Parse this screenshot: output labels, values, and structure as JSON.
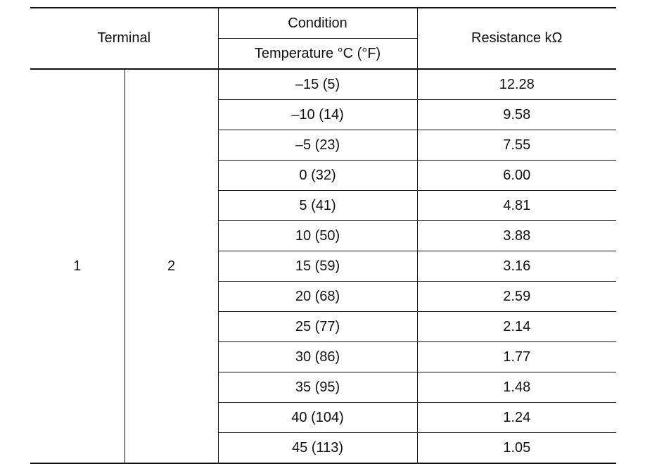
{
  "table": {
    "header": {
      "terminal": "Terminal",
      "condition": "Condition",
      "temperature": "Temperature °C (°F)",
      "resistance": "Resistance kΩ"
    },
    "terminal_1": "1",
    "terminal_2": "2",
    "rows": [
      {
        "temp": "–15 (5)",
        "resistance": "12.28"
      },
      {
        "temp": "–10 (14)",
        "resistance": "9.58"
      },
      {
        "temp": "–5 (23)",
        "resistance": "7.55"
      },
      {
        "temp": "0 (32)",
        "resistance": "6.00"
      },
      {
        "temp": "5 (41)",
        "resistance": "4.81"
      },
      {
        "temp": "10 (50)",
        "resistance": "3.88"
      },
      {
        "temp": "15 (59)",
        "resistance": "3.16"
      },
      {
        "temp": "20 (68)",
        "resistance": "2.59"
      },
      {
        "temp": "25 (77)",
        "resistance": "2.14"
      },
      {
        "temp": "30 (86)",
        "resistance": "1.77"
      },
      {
        "temp": "35 (95)",
        "resistance": "1.48"
      },
      {
        "temp": "40 (104)",
        "resistance": "1.24"
      },
      {
        "temp": "45 (113)",
        "resistance": "1.05"
      }
    ]
  }
}
